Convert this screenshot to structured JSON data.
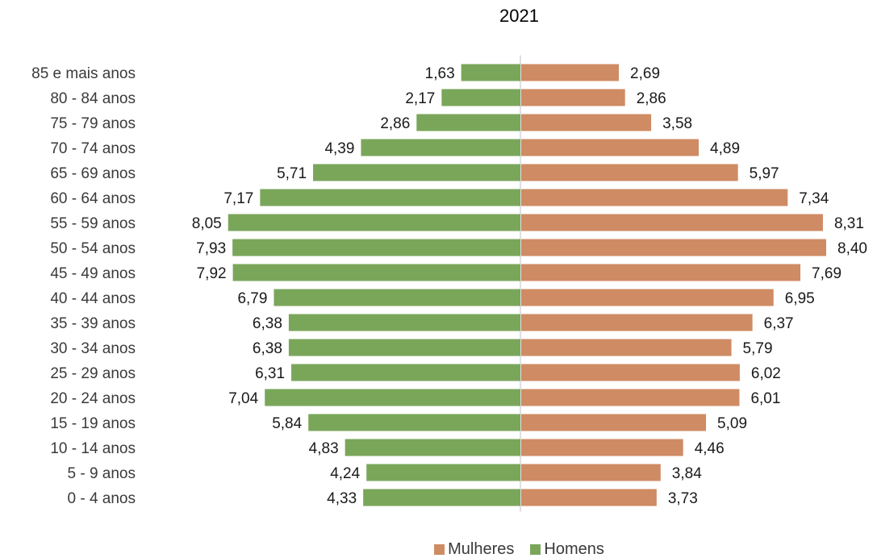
{
  "chart_data": {
    "type": "bar",
    "orientation": "horizontal",
    "variant": "population-pyramid",
    "title": "2021",
    "categories": [
      "85 e mais anos",
      "80 - 84 anos",
      "75 - 79 anos",
      "70 - 74 anos",
      "65 - 69 anos",
      "60 - 64 anos",
      "55 - 59 anos",
      "50 - 54 anos",
      "45 - 49 anos",
      "40 - 44 anos",
      "35 - 39 anos",
      "30 - 34 anos",
      "25 - 29 anos",
      "20 - 24 anos",
      "15 - 19 anos",
      "10 - 14 anos",
      "5 - 9 anos",
      "0 - 4 anos"
    ],
    "series": [
      {
        "name": "Homens",
        "side": "left",
        "color": "#7aa65a",
        "values": [
          1.63,
          2.17,
          2.86,
          4.39,
          5.71,
          7.17,
          8.05,
          7.93,
          7.92,
          6.79,
          6.38,
          6.38,
          6.31,
          7.04,
          5.84,
          4.83,
          4.24,
          4.33
        ],
        "labels": [
          "1,63",
          "2,17",
          "2,86",
          "4,39",
          "5,71",
          "7,17",
          "8,05",
          "7,93",
          "7,92",
          "6,79",
          "6,38",
          "6,38",
          "6,31",
          "7,04",
          "5,84",
          "4,83",
          "4,24",
          "4,33"
        ]
      },
      {
        "name": "Mulheres",
        "side": "right",
        "color": "#cf8b63",
        "values": [
          2.69,
          2.86,
          3.58,
          4.89,
          5.97,
          7.34,
          8.31,
          8.4,
          7.69,
          6.95,
          6.37,
          5.79,
          6.02,
          6.01,
          5.09,
          4.46,
          3.84,
          3.73
        ],
        "labels": [
          "2,69",
          "2,86",
          "3,58",
          "4,89",
          "5,97",
          "7,34",
          "8,31",
          "8,40",
          "7,69",
          "6,95",
          "6,37",
          "5,79",
          "6,02",
          "6,01",
          "5,09",
          "4,46",
          "3,84",
          "3,73"
        ]
      }
    ],
    "legend": {
      "position": "bottom",
      "items": [
        "Mulheres",
        "Homens"
      ]
    },
    "grid": false,
    "center_axis": true
  }
}
